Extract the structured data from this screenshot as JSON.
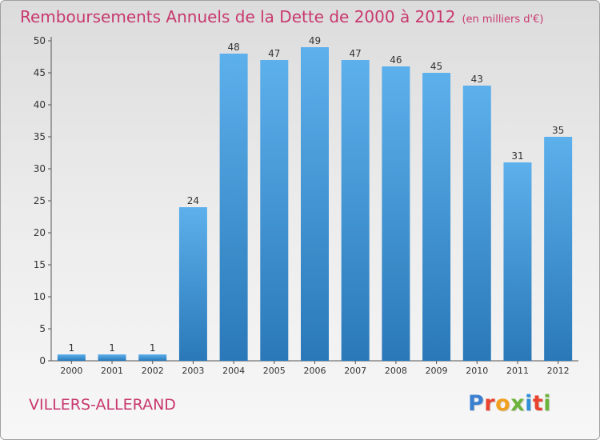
{
  "chart_data": {
    "type": "bar",
    "title": "Remboursements Annuels de la Dette de 2000 à 2012",
    "subtitle": "(en milliers d'€)",
    "categories": [
      "2000",
      "2001",
      "2002",
      "2003",
      "2004",
      "2005",
      "2006",
      "2007",
      "2008",
      "2009",
      "2010",
      "2011",
      "2012"
    ],
    "values": [
      1,
      1,
      1,
      24,
      48,
      47,
      49,
      47,
      46,
      45,
      43,
      31,
      35
    ],
    "ylim": [
      0,
      50
    ],
    "yticks": [
      0,
      5,
      10,
      15,
      20,
      25,
      30,
      35,
      40,
      45,
      50
    ],
    "grid": false,
    "bar_color": "#4a9ee0"
  },
  "commune": "VILLERS-ALLERAND",
  "logo": {
    "letters": [
      {
        "ch": "P",
        "color": "#3a7fd0"
      },
      {
        "ch": "r",
        "color": "#e8432e"
      },
      {
        "ch": "o",
        "color": "#f0a01e"
      },
      {
        "ch": "x",
        "color": "#6bb33a"
      },
      {
        "ch": "i",
        "color": "#2f8fd8"
      },
      {
        "ch": "t",
        "color": "#e8432e"
      },
      {
        "ch": "i",
        "color": "#6bb33a"
      }
    ]
  }
}
